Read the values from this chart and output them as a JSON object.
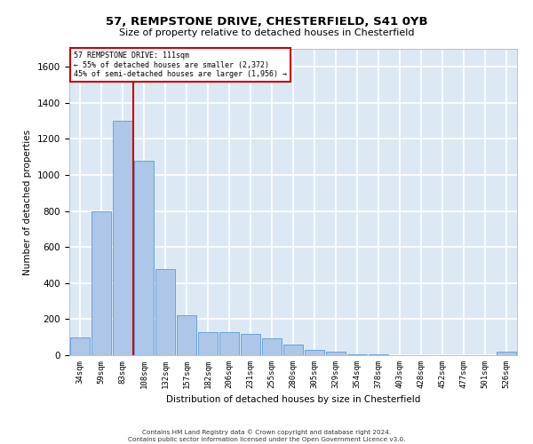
{
  "title1": "57, REMPSTONE DRIVE, CHESTERFIELD, S41 0YB",
  "title2": "Size of property relative to detached houses in Chesterfield",
  "xlabel": "Distribution of detached houses by size in Chesterfield",
  "ylabel": "Number of detached properties",
  "categories": [
    "34sqm",
    "59sqm",
    "83sqm",
    "108sqm",
    "132sqm",
    "157sqm",
    "182sqm",
    "206sqm",
    "231sqm",
    "255sqm",
    "280sqm",
    "305sqm",
    "329sqm",
    "354sqm",
    "378sqm",
    "403sqm",
    "428sqm",
    "452sqm",
    "477sqm",
    "501sqm",
    "526sqm"
  ],
  "values": [
    100,
    800,
    1300,
    1080,
    480,
    220,
    130,
    130,
    120,
    95,
    60,
    30,
    20,
    5,
    5,
    0,
    0,
    0,
    0,
    0,
    20
  ],
  "bar_color": "#aec6e8",
  "bar_edge_color": "#5b9bd5",
  "background_color": "#dce9f5",
  "grid_color": "#ffffff",
  "annotation_line1": "57 REMPSTONE DRIVE: 111sqm",
  "annotation_line2": "← 55% of detached houses are smaller (2,372)",
  "annotation_line3": "45% of semi-detached houses are larger (1,956) →",
  "annotation_box_color": "#ffffff",
  "annotation_box_edge": "#cc0000",
  "vline_color": "#cc0000",
  "vline_x": 2.5,
  "ylim": [
    0,
    1700
  ],
  "yticks": [
    0,
    200,
    400,
    600,
    800,
    1000,
    1200,
    1400,
    1600
  ],
  "footer1": "Contains HM Land Registry data © Crown copyright and database right 2024.",
  "footer2": "Contains public sector information licensed under the Open Government Licence v3.0."
}
